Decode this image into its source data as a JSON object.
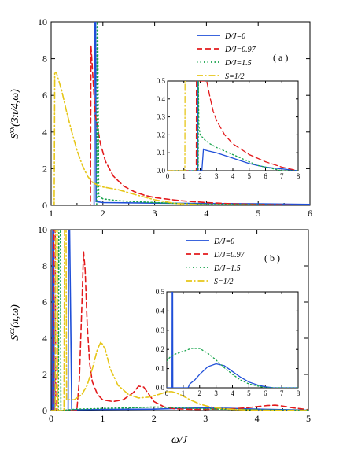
{
  "colors": {
    "D0": "#1f4fd8",
    "D097": "#e31a1c",
    "D15": "#16a34a",
    "S12": "#e6c619"
  },
  "legend": [
    {
      "key": "D0",
      "label": "D/J=0",
      "style": "solid"
    },
    {
      "key": "D097",
      "label": "D/J=0.97",
      "style": "dashed"
    },
    {
      "key": "D15",
      "label": "D/J=1.5",
      "style": "dotted"
    },
    {
      "key": "S12",
      "label": "S=1/2",
      "style": "dashdot"
    }
  ],
  "chart_data": [
    {
      "type": "line",
      "panel_label": "( a )",
      "ylabel": "S^xx(3π/4,ω)",
      "xlim": [
        1,
        6
      ],
      "ylim": [
        0,
        10
      ],
      "xticks": [
        1,
        2,
        3,
        4,
        5,
        6
      ],
      "yticks": [
        0,
        2,
        4,
        6,
        8,
        10
      ],
      "series": [
        {
          "key": "D0",
          "x": [
            1.0,
            1.83,
            1.84,
            1.85,
            1.86,
            1.87,
            2.0,
            3.0,
            4.0,
            5.0,
            6.0
          ],
          "y": [
            0,
            0,
            10,
            10,
            10,
            0.2,
            0.15,
            0.12,
            0.1,
            0.08,
            0.05
          ]
        },
        {
          "key": "D097",
          "x": [
            1.0,
            1.76,
            1.77,
            1.85,
            1.95,
            2.05,
            2.2,
            2.4,
            2.6,
            2.8,
            3.0,
            3.5,
            4.0,
            4.5,
            5.0,
            6.0
          ],
          "y": [
            0,
            0,
            8.7,
            5.0,
            3.4,
            2.4,
            1.6,
            1.05,
            0.75,
            0.55,
            0.42,
            0.25,
            0.15,
            0.08,
            0.05,
            0.0
          ]
        },
        {
          "key": "D15",
          "x": [
            1.0,
            1.88,
            1.89,
            1.9,
            1.92,
            2.0,
            2.3,
            2.6,
            3.0,
            3.5,
            4.0,
            5.0,
            6.0
          ],
          "y": [
            0,
            0,
            10,
            10,
            0.5,
            0.35,
            0.25,
            0.2,
            0.15,
            0.1,
            0.07,
            0.03,
            0.0
          ]
        },
        {
          "key": "S12",
          "x": [
            1.0,
            1.06,
            1.07,
            1.1,
            1.2,
            1.3,
            1.4,
            1.5,
            1.6,
            1.7,
            1.8,
            1.9,
            2.0,
            2.3,
            2.6,
            3.0,
            3.4,
            4.0,
            6.0
          ],
          "y": [
            0,
            0,
            7.2,
            7.25,
            6.3,
            5.1,
            4.0,
            3.0,
            2.2,
            1.6,
            1.25,
            1.1,
            1.0,
            0.85,
            0.6,
            0.3,
            0.1,
            0.02,
            0.0
          ]
        }
      ],
      "inset": {
        "xlim": [
          0,
          8
        ],
        "ylim": [
          0,
          0.5
        ],
        "xticks": [
          0,
          1,
          2,
          3,
          4,
          5,
          6,
          7,
          8
        ],
        "yticks": [
          0.0,
          0.1,
          0.2,
          0.3,
          0.4,
          0.5
        ],
        "series": [
          {
            "key": "D0",
            "x": [
              0,
              1.83,
              1.84,
              1.86,
              2.1,
              2.2,
              2.3,
              2.5,
              3.0,
              3.5,
              4.0,
              4.5,
              5.0,
              5.5,
              6.0,
              6.5,
              7.0,
              7.5,
              8.0
            ],
            "y": [
              0,
              0,
              0.5,
              0.0,
              0.0,
              0.12,
              0.115,
              0.11,
              0.1,
              0.085,
              0.07,
              0.055,
              0.04,
              0.03,
              0.02,
              0.015,
              0.01,
              0.005,
              0.0
            ]
          },
          {
            "key": "D097",
            "x": [
              0,
              1.76,
              1.77,
              1.8,
              2.4,
              2.6,
              2.8,
              3.0,
              3.5,
              4.0,
              4.5,
              5.0,
              5.5,
              6.0,
              6.5,
              7.0,
              7.5,
              8.0
            ],
            "y": [
              0,
              0,
              0.5,
              0.5,
              0.5,
              0.41,
              0.33,
              0.28,
              0.2,
              0.15,
              0.12,
              0.09,
              0.07,
              0.05,
              0.035,
              0.02,
              0.01,
              0.0
            ]
          },
          {
            "key": "D15",
            "x": [
              0,
              1.88,
              1.89,
              1.92,
              2.0,
              2.3,
              2.6,
              3.0,
              3.5,
              4.0,
              4.5,
              5.0,
              5.5,
              6.0,
              7.0,
              8.0
            ],
            "y": [
              0,
              0,
              0.5,
              0.25,
              0.2,
              0.17,
              0.15,
              0.13,
              0.11,
              0.09,
              0.07,
              0.05,
              0.03,
              0.02,
              0.0,
              0.0
            ]
          },
          {
            "key": "S12",
            "x": [
              0,
              1.06,
              1.07,
              1.1
            ],
            "y": [
              0,
              0,
              0.5,
              0.5
            ]
          }
        ]
      }
    },
    {
      "type": "line",
      "panel_label": "( b )",
      "ylabel": "S^xx(π,ω)",
      "xlabel": "ω/J",
      "xlim": [
        0,
        5
      ],
      "ylim": [
        0,
        10
      ],
      "xticks": [
        0,
        1,
        2,
        3,
        4,
        5
      ],
      "yticks": [
        0,
        2,
        4,
        6,
        8,
        10
      ],
      "series": [
        {
          "key": "D0",
          "x": [
            0,
            0.02,
            0.03,
            0.05,
            0.06,
            0.33,
            0.34,
            0.36,
            0.4,
            1.0,
            2.0,
            2.5,
            3.0,
            3.5,
            4.0,
            5.0
          ],
          "y": [
            0,
            0,
            10,
            10,
            0,
            0,
            10,
            10,
            0.05,
            0.06,
            0.08,
            0.12,
            0.15,
            0.12,
            0.08,
            0.02
          ]
        },
        {
          "key": "D097",
          "x": [
            0,
            0.04,
            0.05,
            0.08,
            0.09,
            0.5,
            0.55,
            0.6,
            0.63,
            0.66,
            0.7,
            0.75,
            0.8,
            0.9,
            1.0,
            1.2,
            1.4,
            1.6,
            1.7,
            1.8,
            1.9,
            2.0,
            2.2,
            2.4,
            2.6,
            2.8,
            3.0,
            3.5,
            3.8,
            4.0,
            4.2,
            4.35,
            4.5,
            4.7,
            5.0
          ],
          "y": [
            0,
            0,
            10,
            10,
            0,
            0,
            1.8,
            6.0,
            8.8,
            7.8,
            4.8,
            2.6,
            1.6,
            0.9,
            0.6,
            0.5,
            0.6,
            1.0,
            1.35,
            1.3,
            0.9,
            0.5,
            0.2,
            0.1,
            0.08,
            0.07,
            0.07,
            0.1,
            0.15,
            0.22,
            0.28,
            0.3,
            0.25,
            0.15,
            0.05
          ]
        },
        {
          "key": "D15",
          "x": [
            0,
            0.14,
            0.15,
            0.18,
            0.19,
            0.5,
            0.8,
            1.0,
            1.5,
            1.8,
            2.0,
            2.5,
            3.0,
            3.5,
            4.0,
            5.0
          ],
          "y": [
            0,
            0,
            10,
            10,
            0,
            0.08,
            0.1,
            0.12,
            0.15,
            0.18,
            0.2,
            0.15,
            0.1,
            0.07,
            0.05,
            0.02
          ]
        },
        {
          "key": "S12",
          "x": [
            0,
            0.08,
            0.09,
            0.12,
            0.13,
            0.25,
            0.26,
            0.29,
            0.3,
            0.45,
            0.6,
            0.7,
            0.8,
            0.9,
            0.97,
            1.05,
            1.15,
            1.3,
            1.5,
            1.7,
            1.9,
            2.1,
            2.25,
            2.35,
            2.5,
            2.7,
            2.9,
            3.1,
            3.3,
            3.6,
            4.0,
            5.0
          ],
          "y": [
            0,
            0,
            10,
            10,
            0,
            0,
            10,
            10,
            0.6,
            0.6,
            0.9,
            1.4,
            2.3,
            3.4,
            3.8,
            3.4,
            2.3,
            1.4,
            0.9,
            0.7,
            0.75,
            0.9,
            1.05,
            1.05,
            0.9,
            0.6,
            0.35,
            0.2,
            0.12,
            0.05,
            0.02,
            0.0
          ]
        }
      ],
      "inset": {
        "xlim": [
          0,
          8
        ],
        "ylim": [
          0,
          0.5
        ],
        "xticks": [
          0,
          1,
          2,
          3,
          4,
          5,
          6,
          7,
          8
        ],
        "yticks": [
          0.0,
          0.1,
          0.2,
          0.3,
          0.4,
          0.5
        ],
        "series": [
          {
            "key": "D0",
            "x": [
              0,
              0.32,
              0.33,
              0.36,
              0.37,
              1.3,
              1.4,
              1.7,
              2.0,
              2.5,
              3.0,
              3.5,
              4.0,
              4.5,
              5.0,
              5.5,
              6.0,
              6.5,
              7.0,
              8.0
            ],
            "y": [
              0,
              0,
              0.5,
              0.5,
              0,
              0,
              0.02,
              0.04,
              0.07,
              0.11,
              0.125,
              0.115,
              0.085,
              0.055,
              0.03,
              0.015,
              0.005,
              0.0,
              0.0,
              0.0
            ]
          },
          {
            "key": "D15",
            "x": [
              0,
              0.2,
              0.5,
              1.0,
              1.5,
              2.0,
              2.5,
              3.0,
              3.5,
              4.0,
              4.5,
              5.0,
              5.5,
              6.0,
              7.0,
              8.0
            ],
            "y": [
              0.14,
              0.16,
              0.175,
              0.19,
              0.205,
              0.205,
              0.18,
              0.145,
              0.105,
              0.07,
              0.04,
              0.02,
              0.01,
              0.0,
              0.0,
              0.0
            ]
          }
        ]
      }
    }
  ]
}
